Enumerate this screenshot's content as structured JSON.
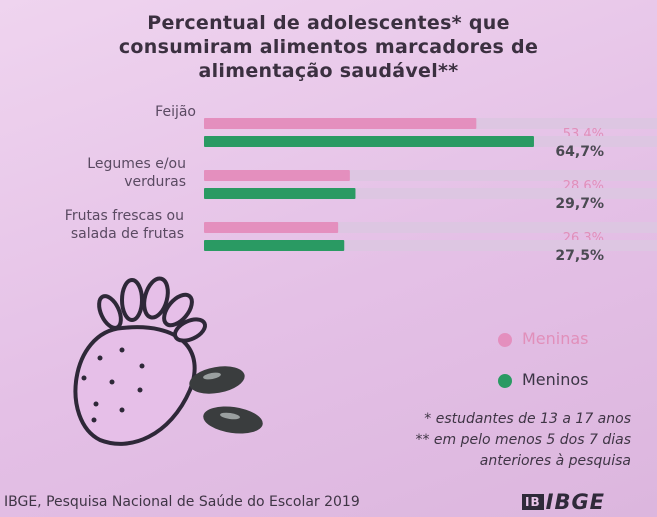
{
  "chart_data": {
    "type": "bar",
    "orientation": "horizontal",
    "title": "Percentual de adolescentes* que consumiram alimentos marcadores de alimentação saudável**",
    "title_lines": [
      "Percentual de adolescentes* que",
      "consumiram alimentos marcadores de",
      "alimentação saudável**"
    ],
    "categories": [
      {
        "lines": [
          "Feijão"
        ]
      },
      {
        "lines": [
          "Legumes e/ou",
          "verduras"
        ]
      },
      {
        "lines": [
          "Frutas frescas ou",
          "salada de frutas"
        ]
      }
    ],
    "series": [
      {
        "name": "Meninas",
        "color": "#e48fbe",
        "values": [
          53.4,
          28.6,
          26.3
        ],
        "labels": [
          "53,4%",
          "28,6%",
          "26,3%"
        ]
      },
      {
        "name": "Meninos",
        "color": "#2a9a63",
        "values": [
          64.7,
          29.7,
          27.5
        ],
        "labels": [
          "64,7%",
          "29,7%",
          "27,5%"
        ]
      }
    ],
    "xlim": [
      0,
      100
    ],
    "track_color": "#ddc6e2"
  },
  "legend": {
    "girls": {
      "label": "Meninas",
      "color": "#e48fbe"
    },
    "boys": {
      "label": "Meninos",
      "color": "#2a9a63"
    }
  },
  "notes": {
    "n1": "* estudantes de 13 a 17 anos",
    "n2": "** em pelo menos 5 dos 7 dias",
    "n3": "anteriores à pesquisa"
  },
  "source": "IBGE, Pesquisa Nacional de Saúde do Escolar 2019",
  "logo": {
    "mark": "IB",
    "text": "IBGE"
  },
  "illustration": {
    "icons": [
      "strawberry-icon",
      "bean-icon"
    ]
  }
}
